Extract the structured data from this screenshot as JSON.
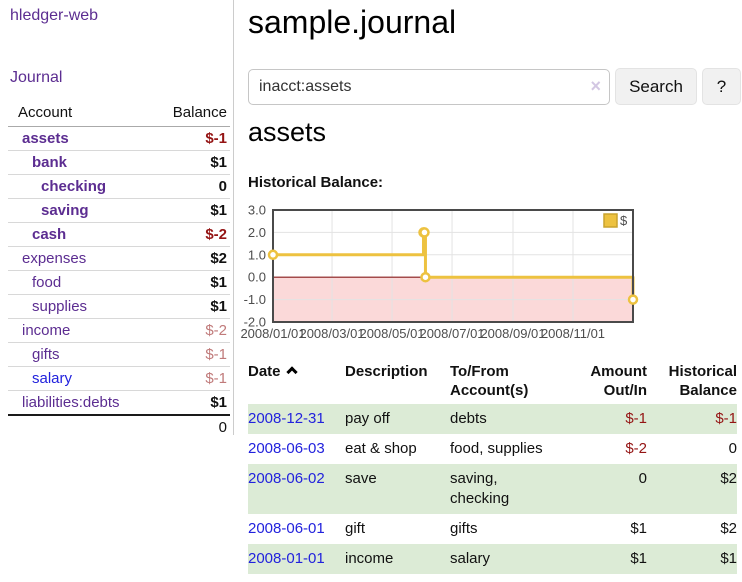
{
  "app": {
    "brand": "hledger-web",
    "nav_journal": "Journal"
  },
  "colors": {
    "link_purple": "#5c2d91",
    "link_blue": "#2222dd",
    "negative_red": "#941414",
    "negative_dim": "#c07a7a",
    "row_stripe_green": "#dcebd6",
    "divider_gray": "#cccccc"
  },
  "sidebar": {
    "headers": {
      "account": "Account",
      "balance": "Balance"
    },
    "accounts": [
      {
        "name": "assets",
        "depth": 1,
        "bold": true,
        "link_color": "purple",
        "balance": "$-1",
        "balance_style": "neg"
      },
      {
        "name": "bank",
        "depth": 2,
        "bold": true,
        "link_color": "purple",
        "balance": "$1",
        "balance_style": "pos"
      },
      {
        "name": "checking",
        "depth": 3,
        "bold": true,
        "link_color": "purple",
        "balance": "0",
        "balance_style": "pos"
      },
      {
        "name": "saving",
        "depth": 3,
        "bold": true,
        "link_color": "purple",
        "balance": "$1",
        "balance_style": "pos"
      },
      {
        "name": "cash",
        "depth": 2,
        "bold": true,
        "link_color": "purple",
        "balance": "$-2",
        "balance_style": "neg"
      },
      {
        "name": "expenses",
        "depth": 1,
        "bold": false,
        "link_color": "purple",
        "balance": "$2",
        "balance_style": "pos"
      },
      {
        "name": "food",
        "depth": 2,
        "bold": false,
        "link_color": "purple",
        "balance": "$1",
        "balance_style": "pos"
      },
      {
        "name": "supplies",
        "depth": 2,
        "bold": false,
        "link_color": "purple",
        "balance": "$1",
        "balance_style": "pos"
      },
      {
        "name": "income",
        "depth": 1,
        "bold": false,
        "link_color": "purple",
        "balance": "$-2",
        "balance_style": "negdim"
      },
      {
        "name": "gifts",
        "depth": 2,
        "bold": false,
        "link_color": "purple",
        "balance": "$-1",
        "balance_style": "negdim"
      },
      {
        "name": "salary",
        "depth": 2,
        "bold": false,
        "link_color": "blue",
        "balance": "$-1",
        "balance_style": "negdim"
      },
      {
        "name": "liabilities:debts",
        "depth": 1,
        "bold": false,
        "link_color": "purple",
        "balance": "$1",
        "balance_style": "pos",
        "last": true
      }
    ],
    "total": "0"
  },
  "main": {
    "title": "sample.journal",
    "search": {
      "value": "inacct:assets",
      "clear_label": "×",
      "button": "Search",
      "help_button": "?"
    },
    "account_heading": "assets",
    "chart_label": "Historical Balance:"
  },
  "chart_data": {
    "type": "line",
    "title": "Historical Balance",
    "style": "steps",
    "legend_position": "top-right",
    "grid": true,
    "x_range": [
      0,
      366
    ],
    "y_range": [
      -2,
      3
    ],
    "y_ticks": [
      3,
      2,
      1,
      0,
      -1,
      -2
    ],
    "x_ticks": [
      {
        "day": 0,
        "label": "2008/01/01"
      },
      {
        "day": 60,
        "label": "2008/03/01"
      },
      {
        "day": 121,
        "label": "2008/05/01"
      },
      {
        "day": 182,
        "label": "2008/07/01"
      },
      {
        "day": 244,
        "label": "2008/09/01"
      },
      {
        "day": 305,
        "label": "2008/11/01"
      }
    ],
    "series": [
      {
        "name": "$",
        "color": "#edc240",
        "points": [
          {
            "day": 0,
            "date": "2008-01-01",
            "value": 1
          },
          {
            "day": 153,
            "date": "2008-06-01",
            "value": 2
          },
          {
            "day": 154,
            "date": "2008-06-02",
            "value": 2
          },
          {
            "day": 155,
            "date": "2008-06-03",
            "value": 0
          },
          {
            "day": 366,
            "date": "2008-12-31",
            "value": -1
          }
        ]
      }
    ],
    "negative_fill": "#fbd9d9",
    "zero_line_color": "#8b1a1a",
    "grid_color": "#e3e3e3",
    "border_color": "#4a4a4a",
    "legend_box_border": "#c9a32e"
  },
  "transactions": {
    "headers": {
      "date": "Date",
      "description": "Description",
      "accounts": "To/From Account(s)",
      "amount": "Amount Out/In",
      "balance": "Historical Balance"
    },
    "rows": [
      {
        "date": "2008-12-31",
        "description": "pay off",
        "accounts": "debts",
        "amount": "$-1",
        "amount_negative": true,
        "balance": "$-1",
        "balance_negative": true
      },
      {
        "date": "2008-06-03",
        "description": "eat & shop",
        "accounts": "food, supplies",
        "amount": "$-2",
        "amount_negative": true,
        "balance": "0",
        "balance_negative": false
      },
      {
        "date": "2008-06-02",
        "description": "save",
        "accounts": "saving, checking",
        "amount": "0",
        "amount_negative": false,
        "balance": "$2",
        "balance_negative": false
      },
      {
        "date": "2008-06-01",
        "description": "gift",
        "accounts": "gifts",
        "amount": "$1",
        "amount_negative": false,
        "balance": "$2",
        "balance_negative": false
      },
      {
        "date": "2008-01-01",
        "description": "income",
        "accounts": "salary",
        "amount": "$1",
        "amount_negative": false,
        "balance": "$1",
        "balance_negative": false
      }
    ]
  }
}
